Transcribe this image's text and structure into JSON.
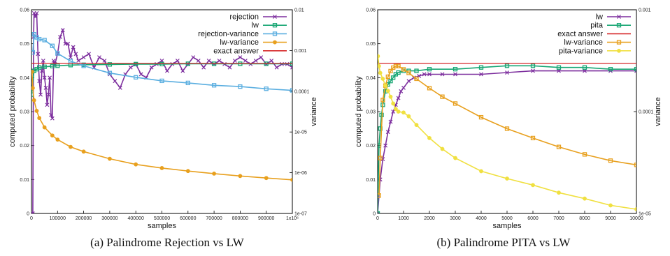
{
  "chart_data": [
    {
      "type": "line",
      "caption": "(a) Palindrome Rejection vs LW",
      "xlabel": "samples",
      "ylabel": "computed probability",
      "y2label": "variance",
      "xlim": [
        0,
        1000000
      ],
      "ylim": [
        0,
        0.06
      ],
      "y2lim": [
        1e-07,
        0.01
      ],
      "y2scale": "log",
      "xticks": [
        "0",
        "100000",
        "200000",
        "300000",
        "400000",
        "500000",
        "600000",
        "700000",
        "800000",
        "900000",
        "1x10⁶"
      ],
      "yticks": [
        "0",
        "0.01",
        "0.02",
        "0.03",
        "0.04",
        "0.05",
        "0.06"
      ],
      "y2ticks": [
        "1e-07",
        "1e-06",
        "1e-05",
        "0.0001",
        "0.001",
        "0.01"
      ],
      "legend_position": "top-right",
      "series": [
        {
          "name": "rejection",
          "axis": "y",
          "color": "#7d2f9e",
          "marker": "x",
          "x": [
            0,
            5000,
            8000,
            10000,
            15000,
            20000,
            25000,
            30000,
            35000,
            40000,
            45000,
            50000,
            55000,
            60000,
            65000,
            70000,
            75000,
            80000,
            85000,
            90000,
            100000,
            110000,
            120000,
            130000,
            140000,
            150000,
            160000,
            170000,
            180000,
            200000,
            220000,
            240000,
            260000,
            280000,
            300000,
            320000,
            340000,
            360000,
            380000,
            400000,
            420000,
            440000,
            460000,
            480000,
            500000,
            520000,
            540000,
            560000,
            580000,
            600000,
            620000,
            640000,
            660000,
            680000,
            700000,
            720000,
            740000,
            760000,
            780000,
            800000,
            820000,
            840000,
            860000,
            880000,
            900000,
            920000,
            940000,
            960000,
            980000,
            1000000
          ],
          "y": [
            0,
            0,
            0.052,
            0.059,
            0.058,
            0.059,
            0.047,
            0.039,
            0.035,
            0.042,
            0.045,
            0.04,
            0.037,
            0.032,
            0.035,
            0.04,
            0.029,
            0.028,
            0.045,
            0.044,
            0.047,
            0.052,
            0.054,
            0.05,
            0.05,
            0.046,
            0.049,
            0.047,
            0.045,
            0.046,
            0.047,
            0.043,
            0.046,
            0.045,
            0.041,
            0.039,
            0.037,
            0.041,
            0.043,
            0.044,
            0.041,
            0.04,
            0.043,
            0.044,
            0.045,
            0.042,
            0.044,
            0.045,
            0.042,
            0.044,
            0.046,
            0.045,
            0.043,
            0.045,
            0.044,
            0.045,
            0.044,
            0.043,
            0.045,
            0.046,
            0.045,
            0.044,
            0.045,
            0.046,
            0.044,
            0.045,
            0.043,
            0.044,
            0.044,
            0.043
          ]
        },
        {
          "name": "lw",
          "axis": "y",
          "color": "#17a673",
          "marker": "square",
          "x": [
            0,
            10000,
            20000,
            30000,
            50000,
            80000,
            100000,
            150000,
            200000,
            300000,
            400000,
            500000,
            600000,
            700000,
            800000,
            900000,
            1000000
          ],
          "y": [
            0.035,
            0.042,
            0.0425,
            0.043,
            0.0432,
            0.0434,
            0.0435,
            0.0437,
            0.0438,
            0.0439,
            0.044,
            0.044,
            0.0441,
            0.0441,
            0.0441,
            0.0441,
            0.0441
          ]
        },
        {
          "name": "rejection-variance",
          "axis": "y2",
          "color": "#5aaee0",
          "marker": "square",
          "x": [
            5000,
            10000,
            20000,
            30000,
            50000,
            80000,
            100000,
            150000,
            200000,
            300000,
            400000,
            500000,
            600000,
            700000,
            800000,
            900000,
            1000000
          ],
          "y": [
            0.0009,
            0.0025,
            0.0021,
            0.0019,
            0.0018,
            0.0013,
            0.00085,
            0.00055,
            0.00042,
            0.00028,
            0.00022,
            0.00018,
            0.00016,
            0.00014,
            0.00013,
            0.000115,
            0.000105
          ]
        },
        {
          "name": "lw-variance",
          "axis": "y2",
          "color": "#e8a01e",
          "marker": "circle",
          "x": [
            2000,
            5000,
            10000,
            20000,
            30000,
            50000,
            80000,
            100000,
            150000,
            200000,
            300000,
            400000,
            500000,
            600000,
            700000,
            800000,
            900000,
            1000000
          ],
          "y": [
            0.0003,
            0.00012,
            6e-05,
            3.3e-05,
            2.2e-05,
            1.3e-05,
            8.2e-06,
            6.5e-06,
            4.3e-06,
            3.3e-06,
            2.2e-06,
            1.6e-06,
            1.3e-06,
            1.1e-06,
            9.5e-07,
            8.3e-07,
            7.4e-07,
            6.7e-07
          ]
        },
        {
          "name": "exact answer",
          "axis": "y",
          "color": "#d62728",
          "marker": "none",
          "x": [
            0,
            1000000
          ],
          "y": [
            0.0442,
            0.0442
          ]
        }
      ]
    },
    {
      "type": "line",
      "caption": "(b) Palindrome PITA vs LW",
      "xlabel": "samples",
      "ylabel": "computed probability",
      "y2label": "variance",
      "xlim": [
        0,
        10000
      ],
      "ylim": [
        0,
        0.06
      ],
      "y2lim": [
        1e-05,
        0.001
      ],
      "y2scale": "log",
      "xticks": [
        "0",
        "1000",
        "2000",
        "3000",
        "4000",
        "5000",
        "6000",
        "7000",
        "8000",
        "9000",
        "10000"
      ],
      "yticks": [
        "0",
        "0.01",
        "0.02",
        "0.03",
        "0.04",
        "0.05",
        "0.06"
      ],
      "y2ticks": [
        "1e-05",
        "0.0001",
        "0.001"
      ],
      "legend_position": "top-right",
      "series": [
        {
          "name": "lw",
          "axis": "y",
          "color": "#7d2f9e",
          "marker": "x",
          "x": [
            0,
            100,
            200,
            300,
            400,
            500,
            600,
            700,
            800,
            900,
            1000,
            1200,
            1400,
            1600,
            1800,
            2000,
            2500,
            3000,
            4000,
            5000,
            6000,
            7000,
            8000,
            9000,
            10000
          ],
          "y": [
            0,
            0.01,
            0.016,
            0.02,
            0.024,
            0.027,
            0.03,
            0.032,
            0.034,
            0.036,
            0.037,
            0.039,
            0.04,
            0.0405,
            0.041,
            0.041,
            0.041,
            0.041,
            0.041,
            0.0415,
            0.042,
            0.042,
            0.042,
            0.042,
            0.042
          ]
        },
        {
          "name": "pita",
          "axis": "y",
          "color": "#17a673",
          "marker": "square",
          "x": [
            0,
            50,
            100,
            150,
            200,
            300,
            400,
            500,
            600,
            700,
            800,
            1000,
            1200,
            1500,
            2000,
            3000,
            4000,
            5000,
            6000,
            7000,
            8000,
            9000,
            10000
          ],
          "y": [
            0,
            0.02,
            0.025,
            0.029,
            0.032,
            0.036,
            0.038,
            0.039,
            0.04,
            0.041,
            0.0415,
            0.042,
            0.042,
            0.042,
            0.0425,
            0.0425,
            0.043,
            0.0435,
            0.0435,
            0.043,
            0.043,
            0.0425,
            0.0425
          ]
        },
        {
          "name": "exact answer",
          "axis": "y",
          "color": "#d62728",
          "marker": "none",
          "x": [
            0,
            10000
          ],
          "y": [
            0.0442,
            0.0442
          ]
        },
        {
          "name": "lw-variance",
          "axis": "y2",
          "color": "#e8a01e",
          "marker": "square",
          "x": [
            50,
            100,
            200,
            300,
            400,
            500,
            600,
            700,
            800,
            1000,
            1200,
            1500,
            2000,
            2500,
            3000,
            4000,
            5000,
            6000,
            7000,
            8000,
            9000,
            10000
          ],
          "y": [
            1.5e-05,
            3.5e-05,
            0.00013,
            0.00018,
            0.00022,
            0.00025,
            0.00027,
            0.00028,
            0.00028,
            0.00026,
            0.00024,
            0.00021,
            0.00017,
            0.00014,
            0.00012,
            8.8e-05,
            6.8e-05,
            5.5e-05,
            4.5e-05,
            3.8e-05,
            3.3e-05,
            3e-05
          ]
        },
        {
          "name": "pita-variance",
          "axis": "y2",
          "color": "#f0e040",
          "marker": "circle",
          "x": [
            10,
            50,
            100,
            200,
            300,
            400,
            500,
            600,
            700,
            800,
            1000,
            1200,
            1500,
            2000,
            2500,
            3000,
            4000,
            5000,
            6000,
            7000,
            8000,
            9000,
            10000
          ],
          "y": [
            0.00035,
            0.00028,
            0.00024,
            0.00021,
            0.00018,
            0.00016,
            0.00014,
            0.00012,
            0.000106,
            0.0001,
            9.8e-05,
            9e-05,
            7.4e-05,
            5.5e-05,
            4.3e-05,
            3.5e-05,
            2.6e-05,
            2.2e-05,
            1.9e-05,
            1.6e-05,
            1.4e-05,
            1.2e-05,
            1.1e-05
          ]
        }
      ]
    }
  ]
}
